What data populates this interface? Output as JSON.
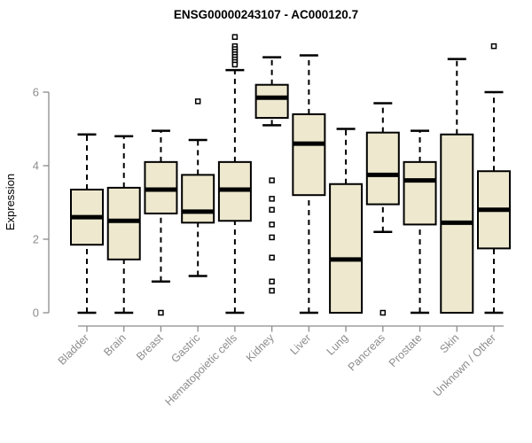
{
  "title": "ENSG00000243107 - AC000120.7",
  "chart_data": {
    "type": "boxplot",
    "title": "ENSG00000243107 - AC000120.7",
    "xlabel": "",
    "ylabel": "Expression",
    "yticks": [
      0,
      2,
      4,
      6
    ],
    "ylim": [
      0,
      7.6
    ],
    "grid": "off",
    "legend": "none",
    "categories": [
      "Bladder",
      "Brain",
      "Breast",
      "Gastric",
      "Hematopoietic cells",
      "Kidney",
      "Liver",
      "Lung",
      "Pancreas",
      "Prostate",
      "Skin",
      "Unknown / Other"
    ],
    "boxes": [
      {
        "name": "Bladder",
        "low": 0,
        "q1": 1.85,
        "median": 2.6,
        "q3": 3.35,
        "high": 4.85,
        "outliers": []
      },
      {
        "name": "Brain",
        "low": 0,
        "q1": 1.45,
        "median": 2.5,
        "q3": 3.4,
        "high": 4.8,
        "outliers": []
      },
      {
        "name": "Breast",
        "low": 0.85,
        "q1": 2.7,
        "median": 3.35,
        "q3": 4.1,
        "high": 4.95,
        "outliers": [
          0
        ]
      },
      {
        "name": "Gastric",
        "low": 1.0,
        "q1": 2.45,
        "median": 2.75,
        "q3": 3.75,
        "high": 4.7,
        "outliers": [
          5.75
        ]
      },
      {
        "name": "Hematopoietic cells",
        "low": 0,
        "q1": 2.5,
        "median": 3.35,
        "q3": 4.1,
        "high": 6.6,
        "outliers": [
          7.5,
          7.25,
          7.17,
          7.1,
          7.03,
          6.96,
          6.89,
          6.82,
          6.75
        ]
      },
      {
        "name": "Kidney",
        "low": 5.1,
        "q1": 5.3,
        "median": 5.85,
        "q3": 6.2,
        "high": 6.95,
        "outliers": [
          3.6,
          3.1,
          2.8,
          2.4,
          2.05,
          1.5,
          0.85,
          0.6
        ]
      },
      {
        "name": "Liver",
        "low": 0,
        "q1": 3.2,
        "median": 4.6,
        "q3": 5.4,
        "high": 7.0,
        "outliers": []
      },
      {
        "name": "Lung",
        "low": 0,
        "q1": 0,
        "median": 1.45,
        "q3": 3.5,
        "high": 5.0,
        "outliers": []
      },
      {
        "name": "Pancreas",
        "low": 2.2,
        "q1": 2.95,
        "median": 3.75,
        "q3": 4.9,
        "high": 5.7,
        "outliers": [
          0
        ]
      },
      {
        "name": "Prostate",
        "low": 0,
        "q1": 2.4,
        "median": 3.6,
        "q3": 4.1,
        "high": 4.95,
        "outliers": []
      },
      {
        "name": "Skin",
        "low": 0,
        "q1": 0,
        "median": 2.45,
        "q3": 4.85,
        "high": 6.9,
        "outliers": []
      },
      {
        "name": "Unknown / Other",
        "low": 0,
        "q1": 1.75,
        "median": 2.8,
        "q3": 3.85,
        "high": 6.0,
        "outliers": [
          7.25
        ]
      }
    ],
    "colors": {
      "box_fill": "#EDE8CE",
      "box_border": "#000000",
      "median": "#000000",
      "whisker": "#000000",
      "outlier_fill": "#ffffff",
      "axis": "#8C8C8C",
      "label": "#8C8C8C",
      "title": "#000000",
      "background": "#ffffff"
    }
  }
}
